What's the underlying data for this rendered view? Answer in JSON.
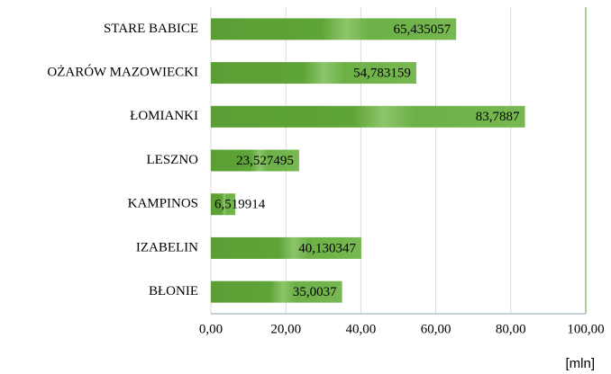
{
  "chart_data": {
    "type": "barh",
    "categories": [
      "STARE BABICE",
      "OŻARÓW MAZOWIECKI",
      "ŁOMIANKI",
      "LESZNO",
      "KAMPINOS",
      "IZABELIN",
      "BŁONIE"
    ],
    "values": [
      65.435057,
      54.783159,
      83.7887,
      23.527495,
      6.519914,
      40.130347,
      35.0037
    ],
    "value_labels": [
      "65,435057",
      "54,783159",
      "83,7887",
      "23,527495",
      "6,519914",
      "40,130347",
      "35,0037"
    ],
    "color": "#5a9e35",
    "xlim": [
      0,
      100
    ],
    "xticks": [
      {
        "value": 0,
        "label": "0,00"
      },
      {
        "value": 20,
        "label": "20,00"
      },
      {
        "value": 40,
        "label": "40,00"
      },
      {
        "value": 60,
        "label": "60,00"
      },
      {
        "value": 80,
        "label": "80,00"
      },
      {
        "value": 100,
        "label": "100,00"
      }
    ],
    "x_label": "[mln]",
    "grid": true
  }
}
